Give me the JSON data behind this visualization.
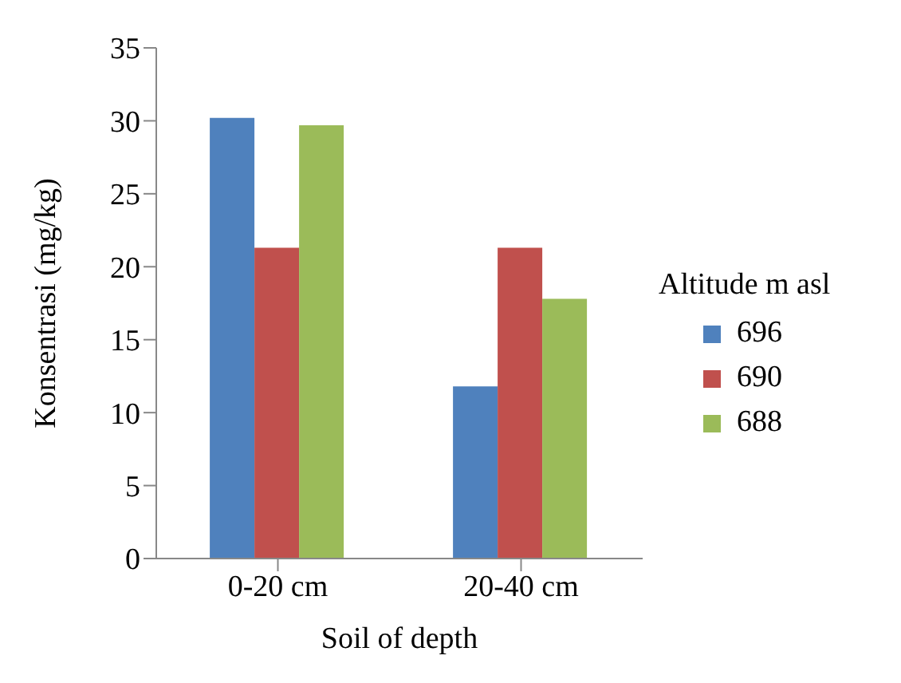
{
  "chart_data": {
    "type": "bar",
    "xlabel": "Soil of depth",
    "ylabel": "Konsentrasi (mg/kg)",
    "legend_title": "Altitude m asl",
    "categories": [
      "0-20 cm",
      "20-40 cm"
    ],
    "series": [
      {
        "name": "696",
        "color": "#4f81bd",
        "values": [
          30.2,
          11.8
        ]
      },
      {
        "name": "690",
        "color": "#c0504d",
        "values": [
          21.3,
          21.3
        ]
      },
      {
        "name": "688",
        "color": "#9bbb59",
        "values": [
          29.7,
          17.8
        ]
      }
    ],
    "ylim": [
      0,
      35
    ],
    "yticks": [
      0,
      5,
      10,
      15,
      20,
      25,
      30,
      35
    ],
    "grid": false,
    "legend": "right"
  }
}
